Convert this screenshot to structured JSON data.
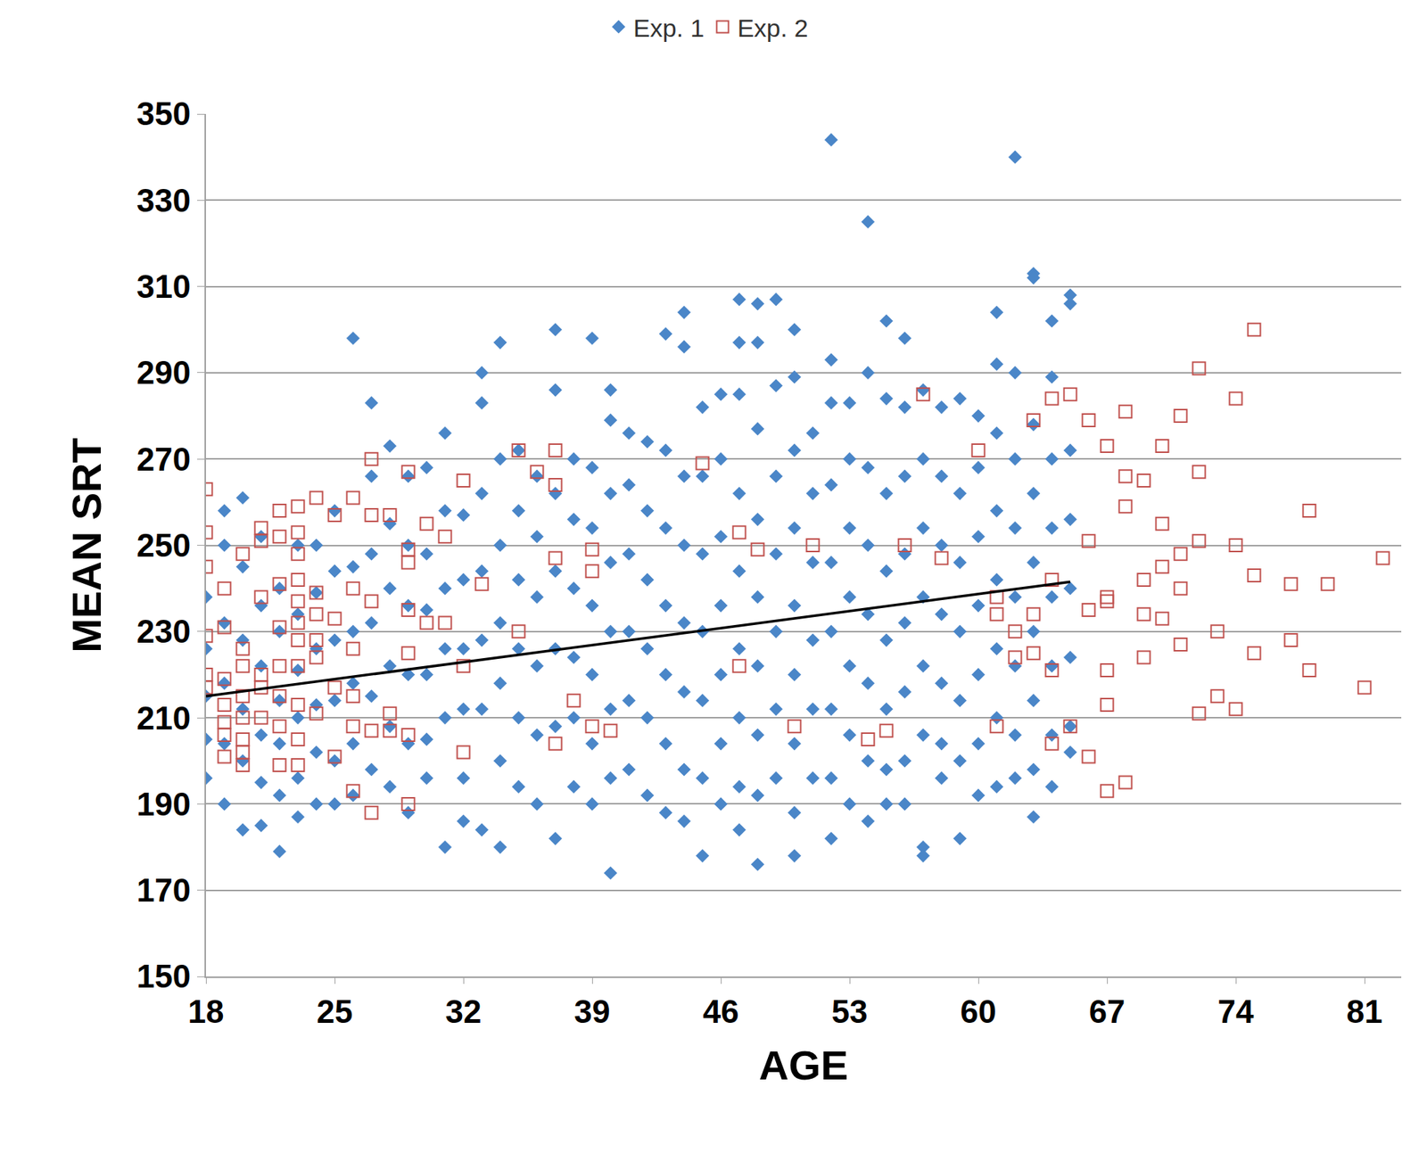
{
  "chart_data": {
    "type": "scatter",
    "x_label": "AGE",
    "y_label": "MEAN SRT",
    "xlim": [
      18,
      83
    ],
    "xticks": [
      18,
      25,
      32,
      39,
      46,
      53,
      60,
      67,
      74,
      81
    ],
    "ylim": [
      150,
      350
    ],
    "yticks": [
      150,
      170,
      190,
      210,
      230,
      250,
      270,
      290,
      310,
      330,
      350
    ],
    "grid": "y",
    "legend": "top",
    "series": [
      {
        "name": "Exp. 1",
        "type": "scatter",
        "marker": "diamond",
        "color": "#4a86c8",
        "x": [
          18,
          18,
          18,
          18,
          18,
          19,
          19,
          19,
          19,
          19,
          19,
          20,
          20,
          20,
          20,
          20,
          20,
          21,
          21,
          21,
          21,
          21,
          21,
          22,
          22,
          22,
          22,
          22,
          22,
          23,
          23,
          23,
          23,
          23,
          23,
          24,
          24,
          24,
          24,
          24,
          24,
          25,
          25,
          25,
          25,
          25,
          25,
          26,
          26,
          26,
          26,
          26,
          26,
          27,
          27,
          27,
          27,
          27,
          27,
          28,
          28,
          28,
          28,
          28,
          28,
          29,
          29,
          29,
          29,
          29,
          29,
          30,
          30,
          30,
          30,
          30,
          30,
          31,
          31,
          31,
          31,
          31,
          31,
          32,
          32,
          32,
          32,
          32,
          32,
          33,
          33,
          33,
          33,
          33,
          33,
          33,
          34,
          34,
          34,
          34,
          34,
          34,
          34,
          35,
          35,
          35,
          35,
          35,
          35,
          36,
          36,
          36,
          36,
          36,
          36,
          37,
          37,
          37,
          37,
          37,
          37,
          37,
          38,
          38,
          38,
          38,
          38,
          38,
          39,
          39,
          39,
          39,
          39,
          39,
          39,
          40,
          40,
          40,
          40,
          40,
          40,
          40,
          40,
          41,
          41,
          41,
          41,
          41,
          41,
          42,
          42,
          42,
          42,
          42,
          42,
          43,
          43,
          43,
          43,
          43,
          43,
          43,
          44,
          44,
          44,
          44,
          44,
          44,
          44,
          44,
          45,
          45,
          45,
          45,
          45,
          45,
          45,
          46,
          46,
          46,
          46,
          46,
          46,
          46,
          47,
          47,
          47,
          47,
          47,
          47,
          47,
          47,
          47,
          48,
          48,
          48,
          48,
          48,
          48,
          48,
          48,
          48,
          49,
          49,
          49,
          49,
          49,
          49,
          49,
          50,
          50,
          50,
          50,
          50,
          50,
          50,
          50,
          50,
          51,
          51,
          51,
          51,
          51,
          51,
          52,
          52,
          52,
          52,
          52,
          52,
          52,
          52,
          52,
          53,
          53,
          53,
          53,
          53,
          53,
          53,
          54,
          54,
          54,
          54,
          54,
          54,
          54,
          54,
          55,
          55,
          55,
          55,
          55,
          55,
          55,
          55,
          56,
          56,
          56,
          56,
          56,
          56,
          56,
          56,
          57,
          57,
          57,
          57,
          57,
          57,
          57,
          57,
          58,
          58,
          58,
          58,
          58,
          58,
          58,
          59,
          59,
          59,
          59,
          59,
          59,
          59,
          60,
          60,
          60,
          60,
          60,
          60,
          60,
          61,
          61,
          61,
          61,
          61,
          61,
          61,
          61,
          62,
          62,
          62,
          62,
          62,
          62,
          62,
          62,
          63,
          63,
          63,
          63,
          63,
          63,
          63,
          63,
          63,
          64,
          64,
          64,
          64,
          64,
          64,
          64,
          64,
          65,
          65,
          65,
          65,
          65,
          65,
          65,
          65
        ],
        "values": [
          238,
          226,
          215,
          205,
          196,
          258,
          250,
          232,
          218,
          204,
          190,
          261,
          245,
          228,
          212,
          200,
          184,
          252,
          236,
          222,
          206,
          195,
          185,
          240,
          230,
          214,
          204,
          192,
          179,
          250,
          234,
          221,
          210,
          196,
          187,
          250,
          239,
          226,
          213,
          202,
          190,
          258,
          244,
          228,
          214,
          200,
          190,
          298,
          245,
          230,
          218,
          204,
          192,
          283,
          266,
          248,
          232,
          215,
          198,
          273,
          255,
          240,
          222,
          208,
          194,
          266,
          250,
          236,
          220,
          204,
          188,
          268,
          248,
          235,
          220,
          205,
          196,
          276,
          258,
          240,
          226,
          210,
          180,
          257,
          242,
          226,
          212,
          196,
          186,
          290,
          283,
          262,
          244,
          228,
          212,
          184,
          297,
          270,
          250,
          232,
          218,
          200,
          180,
          272,
          258,
          242,
          226,
          210,
          194,
          266,
          252,
          238,
          222,
          206,
          190,
          300,
          286,
          262,
          244,
          226,
          208,
          182,
          270,
          256,
          240,
          224,
          210,
          194,
          298,
          268,
          254,
          236,
          220,
          204,
          190,
          286,
          279,
          262,
          246,
          230,
          212,
          196,
          174,
          276,
          264,
          248,
          230,
          214,
          198,
          274,
          258,
          242,
          226,
          210,
          192,
          299,
          272,
          254,
          236,
          220,
          204,
          188,
          304,
          296,
          266,
          250,
          232,
          216,
          198,
          186,
          282,
          266,
          248,
          230,
          214,
          196,
          178,
          285,
          270,
          252,
          236,
          220,
          204,
          190,
          307,
          297,
          285,
          262,
          244,
          226,
          210,
          194,
          184,
          306,
          297,
          277,
          256,
          238,
          222,
          206,
          192,
          176,
          307,
          287,
          266,
          248,
          230,
          212,
          196,
          300,
          289,
          272,
          254,
          236,
          220,
          204,
          188,
          178,
          276,
          262,
          246,
          228,
          212,
          196,
          344,
          293,
          283,
          264,
          246,
          230,
          212,
          196,
          182,
          283,
          270,
          254,
          238,
          222,
          206,
          190,
          325,
          290,
          268,
          250,
          234,
          218,
          200,
          186,
          302,
          284,
          262,
          244,
          228,
          212,
          198,
          190,
          298,
          282,
          266,
          248,
          232,
          216,
          200,
          190,
          286,
          270,
          254,
          238,
          222,
          206,
          180,
          178,
          282,
          266,
          250,
          234,
          218,
          204,
          196,
          284,
          262,
          246,
          230,
          214,
          200,
          182,
          280,
          268,
          252,
          236,
          220,
          204,
          192,
          304,
          292,
          276,
          258,
          242,
          226,
          210,
          194,
          340,
          290,
          270,
          254,
          238,
          222,
          206,
          196,
          313,
          312,
          278,
          262,
          246,
          230,
          214,
          198,
          187,
          302,
          289,
          270,
          254,
          238,
          222,
          206,
          194,
          308,
          306,
          272,
          256,
          240,
          224,
          208,
          202
        ]
      },
      {
        "name": "Exp. 2",
        "type": "scatter",
        "marker": "square-open",
        "color": "#c0504d",
        "x": [
          18,
          18,
          18,
          18,
          18,
          18,
          19,
          19,
          19,
          19,
          19,
          19,
          19,
          20,
          20,
          20,
          20,
          20,
          20,
          20,
          20,
          21,
          21,
          21,
          21,
          21,
          21,
          22,
          22,
          22,
          22,
          22,
          22,
          22,
          22,
          23,
          23,
          23,
          23,
          23,
          23,
          23,
          23,
          23,
          23,
          23,
          24,
          24,
          24,
          24,
          24,
          24,
          25,
          25,
          25,
          25,
          26,
          26,
          26,
          26,
          26,
          26,
          27,
          27,
          27,
          27,
          27,
          28,
          28,
          28,
          29,
          29,
          29,
          29,
          29,
          29,
          29,
          30,
          30,
          31,
          31,
          32,
          32,
          32,
          33,
          35,
          35,
          36,
          37,
          37,
          37,
          37,
          38,
          39,
          39,
          39,
          40,
          45,
          47,
          47,
          48,
          50,
          51,
          54,
          55,
          56,
          57,
          58,
          60,
          61,
          61,
          61,
          62,
          62,
          63,
          63,
          63,
          64,
          64,
          64,
          64,
          65,
          65,
          66,
          66,
          66,
          66,
          67,
          67,
          67,
          67,
          67,
          67,
          68,
          68,
          68,
          68,
          69,
          69,
          69,
          69,
          70,
          70,
          70,
          70,
          71,
          71,
          71,
          71,
          72,
          72,
          72,
          72,
          73,
          73,
          74,
          74,
          74,
          75,
          75,
          75,
          77,
          77,
          78,
          78,
          79,
          81,
          82
        ],
        "values": [
          263,
          253,
          245,
          229,
          220,
          217,
          240,
          231,
          219,
          213,
          209,
          206,
          201,
          248,
          226,
          222,
          215,
          210,
          205,
          202,
          199,
          254,
          251,
          238,
          220,
          217,
          210,
          258,
          252,
          241,
          231,
          222,
          215,
          208,
          199,
          259,
          253,
          248,
          242,
          237,
          232,
          228,
          222,
          213,
          205,
          199,
          261,
          239,
          234,
          228,
          224,
          211,
          257,
          233,
          217,
          201,
          261,
          240,
          226,
          215,
          208,
          193,
          270,
          257,
          237,
          207,
          188,
          257,
          211,
          207,
          267,
          249,
          246,
          235,
          225,
          206,
          190,
          255,
          232,
          252,
          232,
          265,
          222,
          202,
          241,
          272,
          230,
          267,
          272,
          264,
          247,
          204,
          214,
          249,
          244,
          208,
          207,
          269,
          253,
          222,
          249,
          208,
          250,
          205,
          207,
          250,
          285,
          247,
          272,
          238,
          234,
          208,
          230,
          224,
          279,
          234,
          225,
          284,
          242,
          221,
          204,
          285,
          208,
          279,
          251,
          235,
          201,
          273,
          238,
          237,
          221,
          213,
          193,
          281,
          266,
          259,
          195,
          265,
          242,
          234,
          224,
          273,
          255,
          245,
          233,
          280,
          248,
          240,
          227,
          291,
          267,
          251,
          211,
          230,
          215,
          284,
          250,
          212,
          300,
          243,
          225,
          241,
          228,
          258,
          221,
          241,
          217,
          247
        ]
      },
      {
        "type": "line",
        "line_style": "solid",
        "color": "#000000",
        "x": [
          18,
          65
        ],
        "values": [
          215,
          241.5
        ]
      }
    ]
  }
}
